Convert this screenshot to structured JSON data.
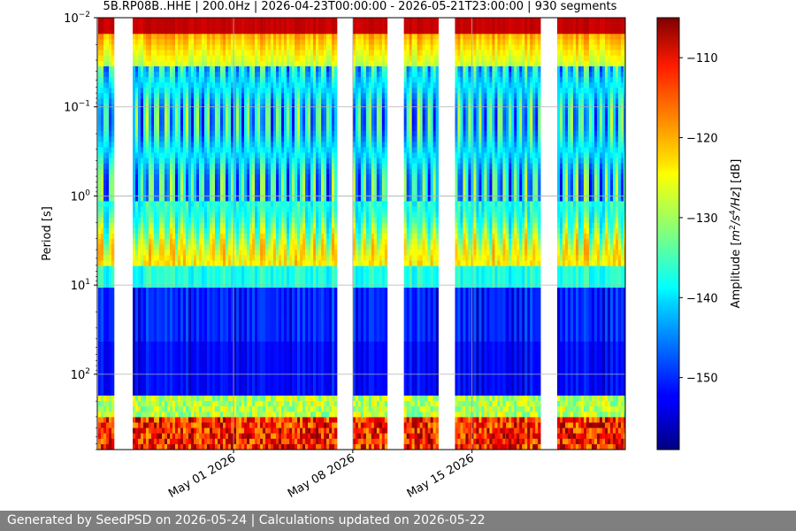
{
  "chart_data": {
    "type": "heatmap",
    "title": "5B.RP08B..HHE | 200.0Hz | 2026-04-23T00:00:00 - 2026-05-21T23:00:00 | 930 segments",
    "xlabel": "",
    "ylabel": "Period [s]",
    "colorbar_label": "Amplitude [m²/s⁴/Hz] [dB]",
    "colorbar_label_parts": {
      "pre": "Amplitude [",
      "m": "m",
      "sup2": "2",
      "slash_s": "/s",
      "sup4": "4",
      "hz": "/Hz",
      "post": "] [dB]"
    },
    "colormap": "jet",
    "x_range": [
      "2026-04-23",
      "2026-05-24"
    ],
    "x_ticks": [
      "May 01 2026",
      "May 08 2026",
      "May 15 2026"
    ],
    "x_tick_dates": [
      "2026-05-01",
      "2026-05-08",
      "2026-05-15"
    ],
    "y_scale": "log",
    "y_inverted": true,
    "y_range_seconds": [
      0.01,
      700
    ],
    "y_ticks": [
      {
        "mantissa": "10",
        "exponent": "−2"
      },
      {
        "mantissa": "10",
        "exponent": "−1"
      },
      {
        "mantissa": "10",
        "exponent": "0"
      },
      {
        "mantissa": "10",
        "exponent": "1"
      },
      {
        "mantissa": "10",
        "exponent": "2"
      }
    ],
    "y_tick_values": [
      0.01,
      0.1,
      1,
      10,
      100
    ],
    "color_range_db": [
      -159,
      -105
    ],
    "colorbar_ticks": [
      "−110",
      "−120",
      "−130",
      "−140",
      "−150"
    ],
    "colorbar_tick_values": [
      -110,
      -120,
      -130,
      -140,
      -150
    ],
    "grid": true,
    "data_intervals": [
      {
        "start": "2026-04-23",
        "end": "2026-04-23"
      },
      {
        "start": "2026-04-25",
        "end": "2026-04-30"
      },
      {
        "start": "2026-05-01",
        "end": "2026-05-06"
      },
      {
        "start": "2026-05-08",
        "end": "2026-05-09"
      },
      {
        "start": "2026-05-11",
        "end": "2026-05-12"
      },
      {
        "start": "2026-05-14",
        "end": "2026-05-16"
      },
      {
        "start": "2026-05-17",
        "end": "2026-05-18"
      },
      {
        "start": "2026-05-20",
        "end": "2026-05-23"
      }
    ]
  },
  "footer": {
    "text": "Generated by SeedPSD on 2026-05-24 | Calculations updated on 2026-05-22"
  }
}
